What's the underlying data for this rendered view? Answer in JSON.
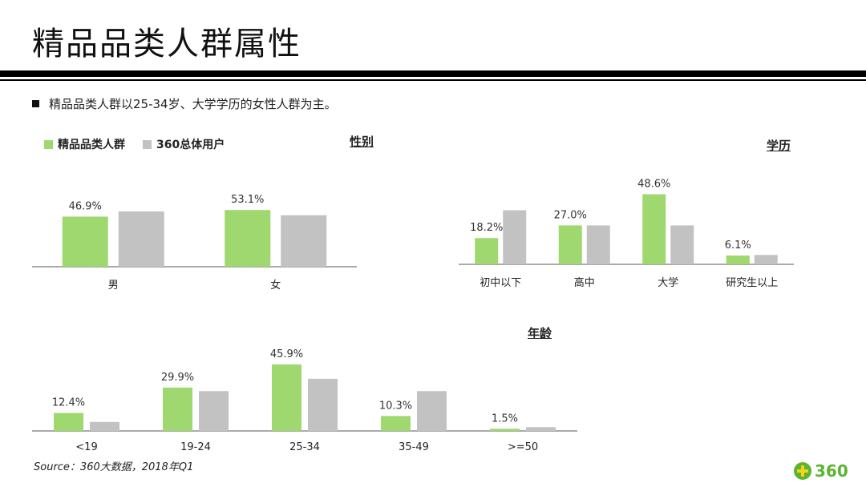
{
  "page": {
    "title": "精品品类人群属性",
    "bullet": "精品品类人群以25-34岁、大学学历的女性人群为主。",
    "source": "Source：360大数据，2018年Q1",
    "logo_text": "360"
  },
  "colors": {
    "primary": "#9ed86e",
    "secondary": "#c2c2c2",
    "axis": "#555555"
  },
  "legend": [
    {
      "label": "精品品类人群",
      "color": "#9ed86e"
    },
    {
      "label": "360总体用户",
      "color": "#c2c2c2"
    }
  ],
  "chart_data": [
    {
      "type": "bar",
      "title": "性别",
      "categories": [
        "男",
        "女"
      ],
      "series": [
        {
          "name": "精品品类人群",
          "values": [
            46.9,
            53.1
          ]
        },
        {
          "name": "360总体用户",
          "values": [
            51.8,
            48.2
          ]
        }
      ],
      "data_labels": [
        "46.9%",
        "53.1%"
      ],
      "ylim": [
        0,
        60
      ]
    },
    {
      "type": "bar",
      "title": "学历",
      "categories": [
        "初中以下",
        "高中",
        "大学",
        "研究生以上"
      ],
      "series": [
        {
          "name": "精品品类人群",
          "values": [
            18.2,
            27.0,
            48.6,
            6.1
          ]
        },
        {
          "name": "360总体用户",
          "values": [
            37.5,
            27.0,
            27.0,
            6.5
          ]
        }
      ],
      "data_labels": [
        "18.2%",
        "27.0%",
        "48.6%",
        "6.1%"
      ],
      "ylim": [
        0,
        50
      ]
    },
    {
      "type": "bar",
      "title": "年龄",
      "categories": [
        "<19",
        "19-24",
        "25-34",
        "35-49",
        ">=50"
      ],
      "series": [
        {
          "name": "精品品类人群",
          "values": [
            12.4,
            29.9,
            45.9,
            10.3,
            1.5
          ]
        },
        {
          "name": "360总体用户",
          "values": [
            6.2,
            27.5,
            36.0,
            27.5,
            2.6
          ]
        }
      ],
      "data_labels": [
        "12.4%",
        "29.9%",
        "45.9%",
        "10.3%",
        "1.5%"
      ],
      "ylim": [
        0,
        47
      ]
    }
  ]
}
